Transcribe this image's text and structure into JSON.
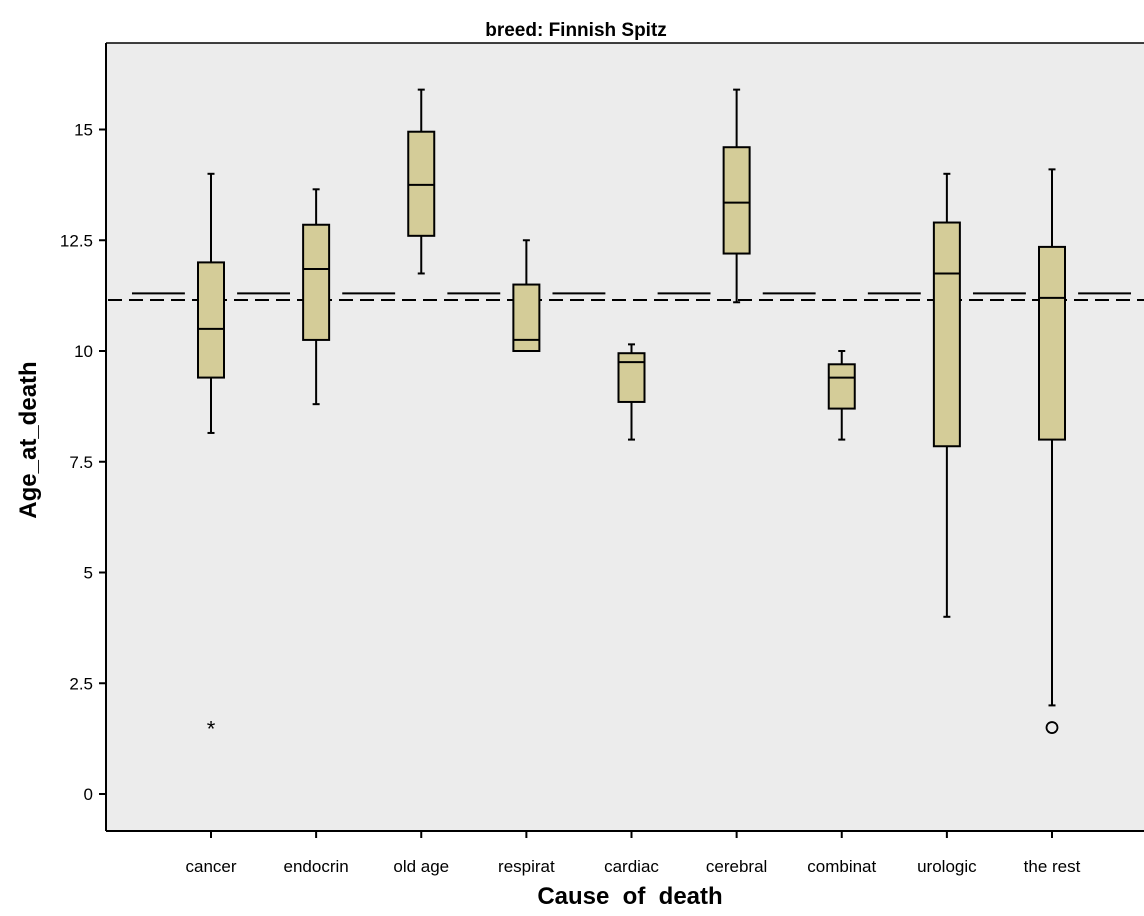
{
  "chart_data": {
    "type": "box",
    "title": "breed: Finnish Spitz",
    "xlabel": "Cause  of  death",
    "ylabel": "Age_at_death",
    "ylim": [
      -0.75,
      16.9
    ],
    "yticks": [
      0,
      2.5,
      5,
      7.5,
      10,
      12.5,
      15
    ],
    "ytick_labels": [
      "0",
      "2.5",
      "5",
      "7.5",
      "10",
      "12.5",
      "15"
    ],
    "categories": [
      "cancer",
      "endocrin",
      "old age",
      "respirat",
      "cardiac",
      "cerebral",
      "combinat",
      "urologic",
      "the rest"
    ],
    "boxes": [
      {
        "min": 8.15,
        "q1": 9.4,
        "median": 10.5,
        "q3": 12.0,
        "max": 14.0,
        "outliers": [],
        "extremes": [
          1.5
        ]
      },
      {
        "min": 8.8,
        "q1": 10.25,
        "median": 11.85,
        "q3": 12.85,
        "max": 13.65,
        "outliers": [],
        "extremes": []
      },
      {
        "min": 11.75,
        "q1": 12.6,
        "median": 13.75,
        "q3": 14.95,
        "max": 15.9,
        "outliers": [],
        "extremes": []
      },
      {
        "min": 10.0,
        "q1": 10.0,
        "median": 10.25,
        "q3": 11.5,
        "max": 12.5,
        "outliers": [],
        "extremes": []
      },
      {
        "min": 8.0,
        "q1": 8.85,
        "median": 9.75,
        "q3": 9.95,
        "max": 10.15,
        "outliers": [],
        "extremes": []
      },
      {
        "min": 11.1,
        "q1": 12.2,
        "median": 13.35,
        "q3": 14.6,
        "max": 15.9,
        "outliers": [],
        "extremes": []
      },
      {
        "min": 8.0,
        "q1": 8.7,
        "median": 9.4,
        "q3": 9.7,
        "max": 10.0,
        "outliers": [],
        "extremes": []
      },
      {
        "min": 4.0,
        "q1": 7.85,
        "median": 11.75,
        "q3": 12.9,
        "max": 14.0,
        "outliers": [],
        "extremes": []
      },
      {
        "min": 2.0,
        "q1": 8.0,
        "median": 11.2,
        "q3": 12.35,
        "max": 14.1,
        "outliers": [
          1.5
        ],
        "extremes": []
      }
    ],
    "category_reference_line": 11.3,
    "overall_reference_line": 11.15,
    "colors": {
      "box_fill": "#d4cc98",
      "plot_background": "#ececec",
      "line": "#000000"
    },
    "grid": false,
    "legend": "none"
  }
}
